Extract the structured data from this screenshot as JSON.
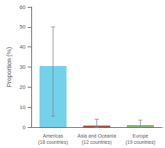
{
  "chart_data": {
    "type": "bar",
    "categories": [
      "Americas\n(18 countries)",
      "Asia and Oceania\n(12 countries)",
      "Europe\n(19 countries)"
    ],
    "values": [
      30.5,
      0.8,
      1.0
    ],
    "colors": [
      "#74d1ea",
      "#b05040",
      "#8ab860"
    ],
    "error_bars": {
      "tops": [
        50.0,
        4.0,
        3.5
      ],
      "bottoms": [
        5.5,
        0.0,
        0.0
      ],
      "color": "#888888"
    },
    "ylabel": "Proportion (%)",
    "ylim": [
      0,
      60
    ],
    "yticks": [
      0,
      10,
      20,
      30,
      40,
      50,
      60
    ],
    "grid": false
  }
}
